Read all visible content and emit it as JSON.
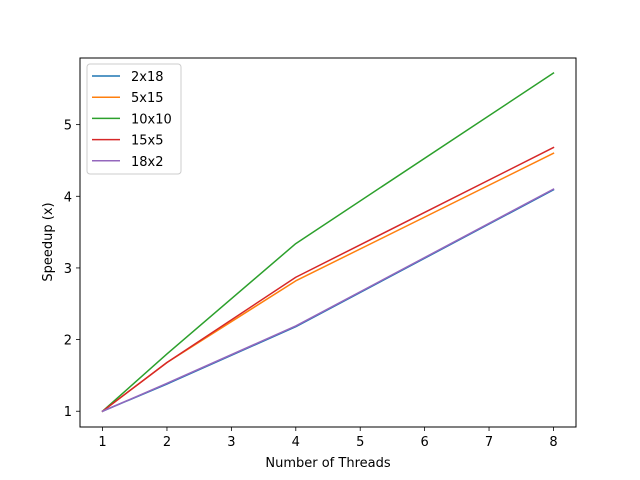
{
  "chart_data": {
    "type": "line",
    "title": "",
    "xlabel": "Number of Threads",
    "ylabel": "Speedup (x)",
    "x": [
      1,
      2,
      4,
      8
    ],
    "xlim": [
      0.65,
      8.35
    ],
    "ylim": [
      0.78,
      5.93
    ],
    "xticks": [
      1,
      2,
      3,
      4,
      5,
      6,
      7,
      8
    ],
    "yticks": [
      1,
      2,
      3,
      4,
      5
    ],
    "grid": false,
    "legend_position": "top-left",
    "series": [
      {
        "name": "2x18",
        "color": "#1f77b4",
        "values": [
          1.0,
          1.38,
          2.18,
          4.09
        ]
      },
      {
        "name": "5x15",
        "color": "#ff7f0e",
        "values": [
          1.0,
          1.68,
          2.82,
          4.6
        ]
      },
      {
        "name": "10x10",
        "color": "#2ca02c",
        "values": [
          1.0,
          1.8,
          3.34,
          5.72
        ]
      },
      {
        "name": "15x5",
        "color": "#d62728",
        "values": [
          1.0,
          1.68,
          2.87,
          4.68
        ]
      },
      {
        "name": "18x2",
        "color": "#9467bd",
        "values": [
          1.0,
          1.39,
          2.19,
          4.1
        ]
      }
    ]
  }
}
